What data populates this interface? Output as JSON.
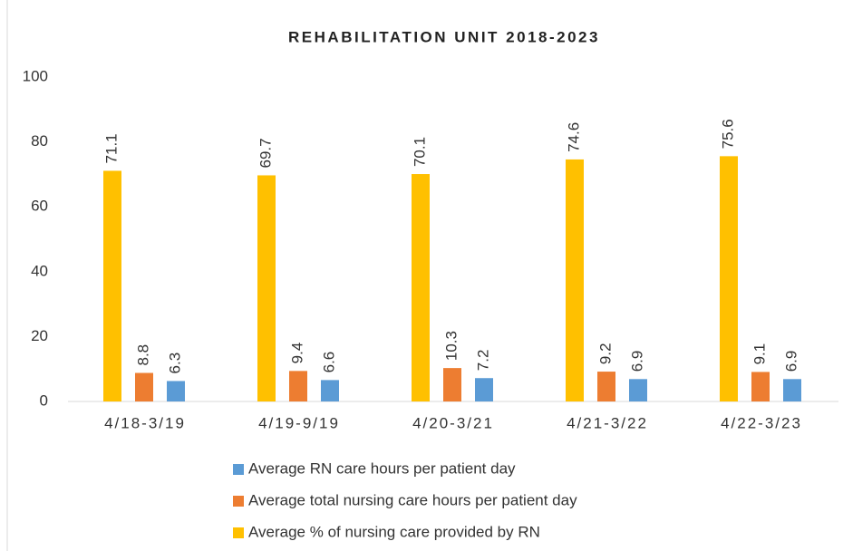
{
  "chart_data": {
    "type": "bar",
    "title": "REHABILITATION UNIT 2018-2023",
    "categories": [
      "4/18-3/19",
      "4/19-9/19",
      "4/20-3/21",
      "4/21-3/22",
      "4/22-3/23"
    ],
    "series": [
      {
        "name": "Average % of nursing care provided by RN",
        "color": "#ffc000",
        "values": [
          71.1,
          69.7,
          70.1,
          74.6,
          75.6
        ]
      },
      {
        "name": "Average total nursing care hours per patient day",
        "color": "#ed7d31",
        "values": [
          8.8,
          9.4,
          10.3,
          9.2,
          9.1
        ]
      },
      {
        "name": "Average RN care hours per patient day",
        "color": "#5b9bd5",
        "values": [
          6.3,
          6.6,
          7.2,
          6.9,
          6.9
        ]
      }
    ],
    "ylim": [
      0,
      100
    ],
    "yticks": [
      0,
      20,
      40,
      60,
      80,
      100
    ],
    "grid": false,
    "legend": "bottom"
  }
}
